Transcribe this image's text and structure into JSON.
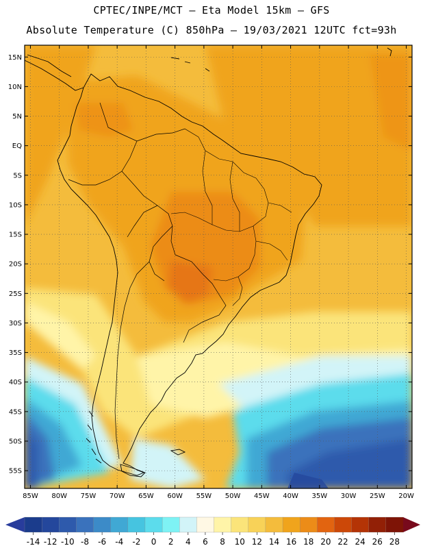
{
  "header": {
    "line1": "CPTEC/INPE/MCT –  Eta Model 15km – GFS",
    "line2": "Absolute Temperature (C) 850hPa – 19/03/2021 12UTC fct=93h"
  },
  "map": {
    "lat_labels": [
      "15N",
      "10N",
      "5N",
      "EQ",
      "5S",
      "10S",
      "15S",
      "20S",
      "25S",
      "30S",
      "35S",
      "40S",
      "45S",
      "50S",
      "55S"
    ],
    "lon_labels": [
      "85W",
      "80W",
      "75W",
      "70W",
      "65W",
      "60W",
      "55W",
      "50W",
      "45W",
      "40W",
      "35W",
      "30W",
      "25W",
      "20W"
    ],
    "lon_range": [
      -86,
      -19
    ],
    "lat_range": [
      -58,
      17
    ],
    "grid_step_deg": 5,
    "features": [
      "temperature-field",
      "south-america-coastline",
      "country-borders",
      "brazil-state-borders"
    ]
  },
  "colorbar": {
    "ticks": [
      "-14",
      "-12",
      "-10",
      "-8",
      "-6",
      "-4",
      "-2",
      "0",
      "2",
      "4",
      "6",
      "8",
      "10",
      "12",
      "14",
      "16",
      "18",
      "20",
      "22",
      "24",
      "26",
      "28"
    ],
    "colors": [
      "#1b3c8c",
      "#24479c",
      "#2e5aac",
      "#3a72bc",
      "#3c8bc8",
      "#40a8d4",
      "#46c4e0",
      "#5cdcec",
      "#7ef2f4",
      "#d2f4f8",
      "#fff8e4",
      "#fff4a8",
      "#fbe47a",
      "#f8d258",
      "#f4bc3c",
      "#f0a41c",
      "#ec8c18",
      "#e26410",
      "#cc4808",
      "#b43406",
      "#922006",
      "#7e1406"
    ],
    "under_color": "#283c9c",
    "over_color": "#780a1c"
  },
  "field_colors": {
    "ocean_warm": "#f0a41c",
    "ocean_mid": "#f4bc3c",
    "land_warm": "#ec8c18",
    "hot_spot": "#e2781a",
    "pale_yellow": "#fbe47a",
    "cream": "#fff4a8",
    "light_cyan": "#d2f4f8",
    "cyan": "#5cdcec",
    "sky": "#40a8d4",
    "blue": "#3a72bc",
    "deep_blue": "#2e5aac",
    "darkest_blue": "#24479c",
    "land_outline": "#000000"
  }
}
